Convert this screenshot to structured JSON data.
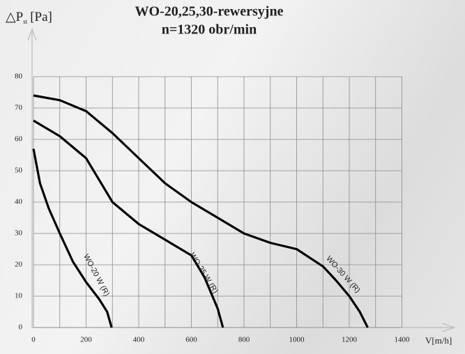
{
  "chart_data": {
    "type": "line",
    "title": "WO-20,25,30-rewersyjne",
    "subtitle": "n=1320 obr/min",
    "ylabel": {
      "symbol": "△P",
      "sub": "st",
      "unit": "[Pa]"
    },
    "xlabel": "V[m/h]",
    "xlim": [
      0,
      1400
    ],
    "ylim": [
      0,
      80
    ],
    "xticks": [
      0,
      200,
      400,
      600,
      800,
      1000,
      1200,
      1400
    ],
    "xminor": [
      100,
      300,
      500,
      700,
      900,
      1100,
      1300
    ],
    "yticks": [
      0,
      10,
      20,
      30,
      40,
      50,
      60,
      70,
      80
    ],
    "grid": true,
    "series": [
      {
        "name": "WO-20 W (R)",
        "color": "#000000",
        "x": [
          0,
          25,
          58,
          100,
          150,
          200,
          250,
          280,
          297
        ],
        "values": [
          57,
          46,
          38,
          30,
          21,
          14.5,
          9,
          5,
          0
        ]
      },
      {
        "name": "WO-25 W (R)",
        "color": "#000000",
        "x": [
          0,
          100,
          200,
          300,
          400,
          500,
          600,
          650,
          700,
          720
        ],
        "values": [
          66,
          61,
          54,
          40,
          33,
          28,
          23,
          16,
          6,
          0
        ]
      },
      {
        "name": "WO-30 W (R)",
        "color": "#000000",
        "x": [
          0,
          100,
          200,
          300,
          400,
          500,
          600,
          700,
          800,
          900,
          1000,
          1100,
          1150,
          1200,
          1240,
          1270
        ],
        "values": [
          74,
          72.5,
          69,
          62,
          54,
          46,
          40,
          35,
          30,
          27,
          25,
          19.5,
          15,
          10,
          5,
          0
        ]
      }
    ]
  }
}
